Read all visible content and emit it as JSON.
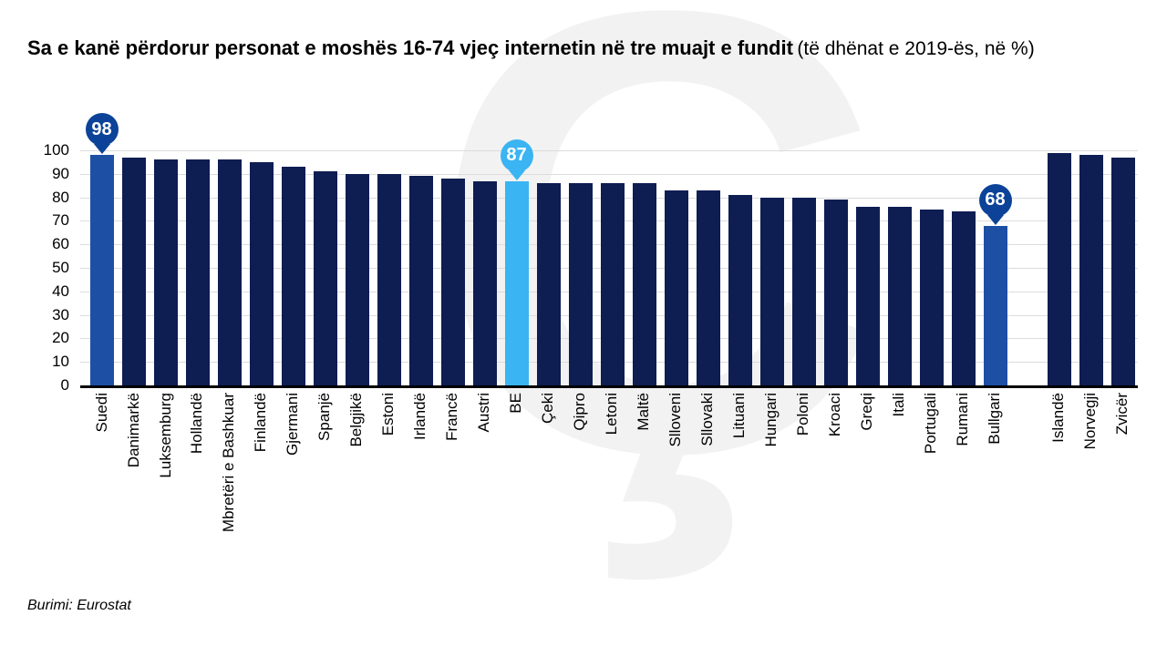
{
  "title": {
    "bold": "Sa e kanë përdorur personat e moshës 16-74 vjeç internetin në tre muajt e fundit",
    "normal": "(të dhënat e 2019-ës, në %)"
  },
  "source": "Burimi: Eurostat",
  "watermark": {
    "glyph": "Ç"
  },
  "colors": {
    "bar_navy": "#0e1d52",
    "bar_accent": "#1d4fa5",
    "callout_dark": "#0c4399",
    "accent_light": "#3ab4f2",
    "gridline": "#dcdcdc",
    "axis": "#000000",
    "watermark": "#f2f2f2"
  },
  "chart_data": {
    "type": "bar",
    "title": "Sa e kanë përdorur personat e moshës 16-74 vjeç internetin në tre muajt e fundit (të dhënat e 2019-ës, në %)",
    "xlabel": "",
    "ylabel": "",
    "ylim": [
      0,
      100
    ],
    "yticks": [
      100,
      90,
      80,
      70,
      60,
      50,
      40,
      30,
      20,
      10,
      0
    ],
    "grid": true,
    "legend": false,
    "bars": [
      {
        "label": "Suedi",
        "value": 98,
        "variant": "accent-dark",
        "callout": {
          "text": "98",
          "style": "dark"
        }
      },
      {
        "label": "Danimarkë",
        "value": 97
      },
      {
        "label": "Luksemburg",
        "value": 96
      },
      {
        "label": "Hollandë",
        "value": 96
      },
      {
        "label": "Mbretëri e Bashkuar",
        "value": 96
      },
      {
        "label": "Finlandë",
        "value": 95
      },
      {
        "label": "Gjermani",
        "value": 93
      },
      {
        "label": "Spanjë",
        "value": 91
      },
      {
        "label": "Belgjikë",
        "value": 90
      },
      {
        "label": "Estoni",
        "value": 90
      },
      {
        "label": "Irlandë",
        "value": 89
      },
      {
        "label": "Francë",
        "value": 88
      },
      {
        "label": "Austri",
        "value": 87
      },
      {
        "label": "BE",
        "value": 87,
        "variant": "accent-light",
        "callout": {
          "text": "87",
          "style": "light"
        }
      },
      {
        "label": "Çeki",
        "value": 86
      },
      {
        "label": "Qipro",
        "value": 86
      },
      {
        "label": "Letoni",
        "value": 86
      },
      {
        "label": "Maltë",
        "value": 86
      },
      {
        "label": "Slloveni",
        "value": 83
      },
      {
        "label": "Sllovaki",
        "value": 83
      },
      {
        "label": "Lituani",
        "value": 81
      },
      {
        "label": "Hungari",
        "value": 80
      },
      {
        "label": "Poloni",
        "value": 80
      },
      {
        "label": "Kroaci",
        "value": 79
      },
      {
        "label": "Greqi",
        "value": 76
      },
      {
        "label": "Itali",
        "value": 76
      },
      {
        "label": "Portugali",
        "value": 75
      },
      {
        "label": "Rumani",
        "value": 74
      },
      {
        "label": "Bullgari",
        "value": 68,
        "variant": "accent-dark",
        "callout": {
          "text": "68",
          "style": "dark"
        }
      },
      {
        "label": "",
        "value": null,
        "spacer": true
      },
      {
        "label": "Islandë",
        "value": 99
      },
      {
        "label": "Norvegji",
        "value": 98
      },
      {
        "label": "Zvicër",
        "value": 97
      }
    ]
  }
}
